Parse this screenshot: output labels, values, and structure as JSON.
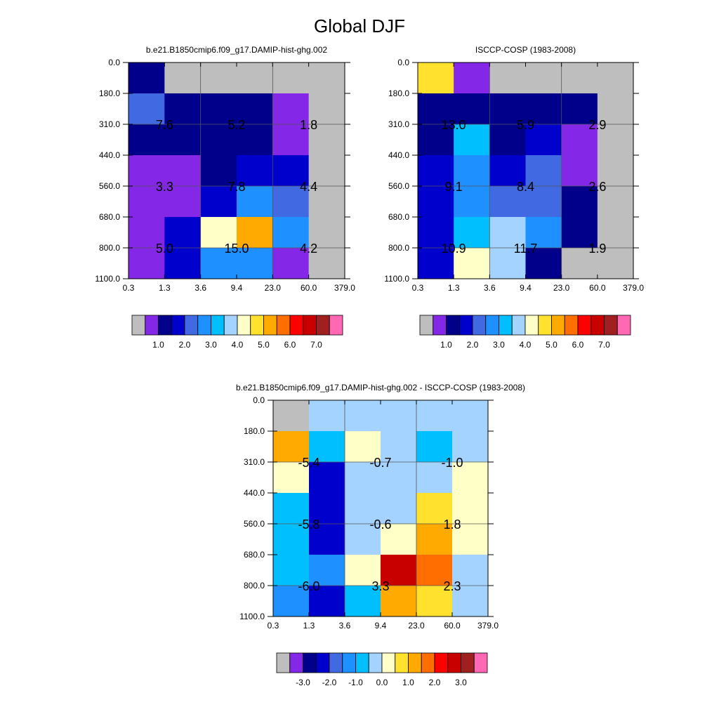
{
  "figure_title": "Global DJF",
  "colors": {
    "gray": "#bebebe",
    "c1": "#8427e6",
    "c2": "#00008b",
    "c3": "#0000cd",
    "c4": "#4169e1",
    "c5": "#1e90ff",
    "c6": "#00bfff",
    "c7": "#a4d3ff",
    "c8": "#ffffc8",
    "c9": "#ffe12e",
    "c10": "#ffaa00",
    "c11": "#ff6e00",
    "c12": "#ff0000",
    "c13": "#c80000",
    "c14": "#a02020",
    "c15": "#ff69b4"
  },
  "chart_data": [
    {
      "type": "heatmap",
      "title": "b.e21.B1850cmip6.f09_g17.DAMIP-hist-ghg.002",
      "x_ticks": [
        "0.3",
        "1.3",
        "3.6",
        "9.4",
        "23.0",
        "60.0",
        "379.0"
      ],
      "y_ticks": [
        "0.0",
        "180.0",
        "310.0",
        "440.0",
        "560.0",
        "680.0",
        "800.0",
        "1100.0"
      ],
      "cells": [
        [
          "c2",
          "gray",
          "gray",
          "gray",
          "gray",
          "gray"
        ],
        [
          "c4",
          "c2",
          "c2",
          "c2",
          "c1",
          "gray"
        ],
        [
          "c2",
          "c2",
          "c2",
          "c2",
          "c1",
          "gray"
        ],
        [
          "c1",
          "c1",
          "c2",
          "c3",
          "c3",
          "gray"
        ],
        [
          "c1",
          "c1",
          "c3",
          "c5",
          "c4",
          "gray"
        ],
        [
          "c1",
          "c3",
          "c8",
          "c10",
          "c5",
          "gray"
        ],
        [
          "c1",
          "c3",
          "c5",
          "c5",
          "c1",
          "gray"
        ]
      ],
      "labels": [
        {
          "text": "7.6",
          "col": 1,
          "row": 2
        },
        {
          "text": "5.2",
          "col": 3,
          "row": 2
        },
        {
          "text": "1.8",
          "col": 5,
          "row": 2
        },
        {
          "text": "3.3",
          "col": 1,
          "row": 4
        },
        {
          "text": "7.8",
          "col": 3,
          "row": 4
        },
        {
          "text": "4.4",
          "col": 5,
          "row": 4
        },
        {
          "text": "5.0",
          "col": 1,
          "row": 6
        },
        {
          "text": "15.0",
          "col": 3,
          "row": 6
        },
        {
          "text": "4.2",
          "col": 5,
          "row": 6
        }
      ],
      "legend": {
        "colors": [
          "gray",
          "c1",
          "c2",
          "c3",
          "c4",
          "c5",
          "c6",
          "c7",
          "c8",
          "c9",
          "c10",
          "c11",
          "c12",
          "c13",
          "c14",
          "c15"
        ],
        "labels": [
          "1.0",
          "2.0",
          "3.0",
          "4.0",
          "5.0",
          "6.0",
          "7.0"
        ],
        "label_start_box": 2
      }
    },
    {
      "type": "heatmap",
      "title": "ISCCP-COSP (1983-2008)",
      "x_ticks": [
        "0.3",
        "1.3",
        "3.6",
        "9.4",
        "23.0",
        "60.0",
        "379.0"
      ],
      "y_ticks": [
        "0.0",
        "180.0",
        "310.0",
        "440.0",
        "560.0",
        "680.0",
        "800.0",
        "1100.0"
      ],
      "cells": [
        [
          "c9",
          "c1",
          "gray",
          "gray",
          "gray",
          "gray"
        ],
        [
          "c2",
          "c2",
          "c2",
          "c2",
          "c2",
          "gray"
        ],
        [
          "c2",
          "c6",
          "c2",
          "c3",
          "c1",
          "gray"
        ],
        [
          "c3",
          "c5",
          "c3",
          "c4",
          "c1",
          "gray"
        ],
        [
          "c3",
          "c5",
          "c4",
          "c4",
          "c2",
          "gray"
        ],
        [
          "c3",
          "c6",
          "c7",
          "c5",
          "c2",
          "gray"
        ],
        [
          "c3",
          "c8",
          "c7",
          "c2",
          "gray",
          "gray"
        ]
      ],
      "labels": [
        {
          "text": "13.0",
          "col": 1,
          "row": 2
        },
        {
          "text": "5.9",
          "col": 3,
          "row": 2
        },
        {
          "text": "2.9",
          "col": 5,
          "row": 2
        },
        {
          "text": "9.1",
          "col": 1,
          "row": 4
        },
        {
          "text": "8.4",
          "col": 3,
          "row": 4
        },
        {
          "text": "2.6",
          "col": 5,
          "row": 4
        },
        {
          "text": "10.9",
          "col": 1,
          "row": 6
        },
        {
          "text": "11.7",
          "col": 3,
          "row": 6
        },
        {
          "text": "1.9",
          "col": 5,
          "row": 6
        }
      ],
      "legend": {
        "colors": [
          "gray",
          "c1",
          "c2",
          "c3",
          "c4",
          "c5",
          "c6",
          "c7",
          "c8",
          "c9",
          "c10",
          "c11",
          "c12",
          "c13",
          "c14",
          "c15"
        ],
        "labels": [
          "1.0",
          "2.0",
          "3.0",
          "4.0",
          "5.0",
          "6.0",
          "7.0"
        ],
        "label_start_box": 2
      }
    },
    {
      "type": "heatmap",
      "title": "b.e21.B1850cmip6.f09_g17.DAMIP-hist-ghg.002 - ISCCP-COSP (1983-2008)",
      "x_ticks": [
        "0.3",
        "1.3",
        "3.6",
        "9.4",
        "23.0",
        "60.0",
        "379.0"
      ],
      "y_ticks": [
        "0.0",
        "180.0",
        "310.0",
        "440.0",
        "560.0",
        "680.0",
        "800.0",
        "1100.0"
      ],
      "cells": [
        [
          "gray",
          "c7",
          "c7",
          "c7",
          "c7",
          "c7"
        ],
        [
          "c10",
          "c6",
          "c8",
          "c7",
          "c6",
          "c7"
        ],
        [
          "c8",
          "c3",
          "c7",
          "c7",
          "c7",
          "c8"
        ],
        [
          "c6",
          "c3",
          "c7",
          "c7",
          "c9",
          "c8"
        ],
        [
          "c6",
          "c3",
          "c7",
          "c8",
          "c10",
          "c8"
        ],
        [
          "c6",
          "c5",
          "c8",
          "c13",
          "c11",
          "c7"
        ],
        [
          "c5",
          "c3",
          "c6",
          "c10",
          "c9",
          "c7"
        ]
      ],
      "labels": [
        {
          "text": "-5.4",
          "col": 1,
          "row": 2
        },
        {
          "text": "-0.7",
          "col": 3,
          "row": 2
        },
        {
          "text": "-1.0",
          "col": 5,
          "row": 2
        },
        {
          "text": "-5.8",
          "col": 1,
          "row": 4
        },
        {
          "text": "-0.6",
          "col": 3,
          "row": 4
        },
        {
          "text": "1.8",
          "col": 5,
          "row": 4
        },
        {
          "text": "-6.0",
          "col": 1,
          "row": 6
        },
        {
          "text": "3.3",
          "col": 3,
          "row": 6
        },
        {
          "text": "2.3",
          "col": 5,
          "row": 6
        }
      ],
      "legend": {
        "colors": [
          "gray",
          "c1",
          "c2",
          "c3",
          "c4",
          "c5",
          "c6",
          "c7",
          "c8",
          "c9",
          "c10",
          "c11",
          "c12",
          "c13",
          "c14",
          "c15"
        ],
        "labels": [
          "-3.0",
          "-2.0",
          "-1.0",
          "0.0",
          "1.0",
          "2.0",
          "3.0"
        ],
        "label_start_box": 2
      }
    }
  ]
}
